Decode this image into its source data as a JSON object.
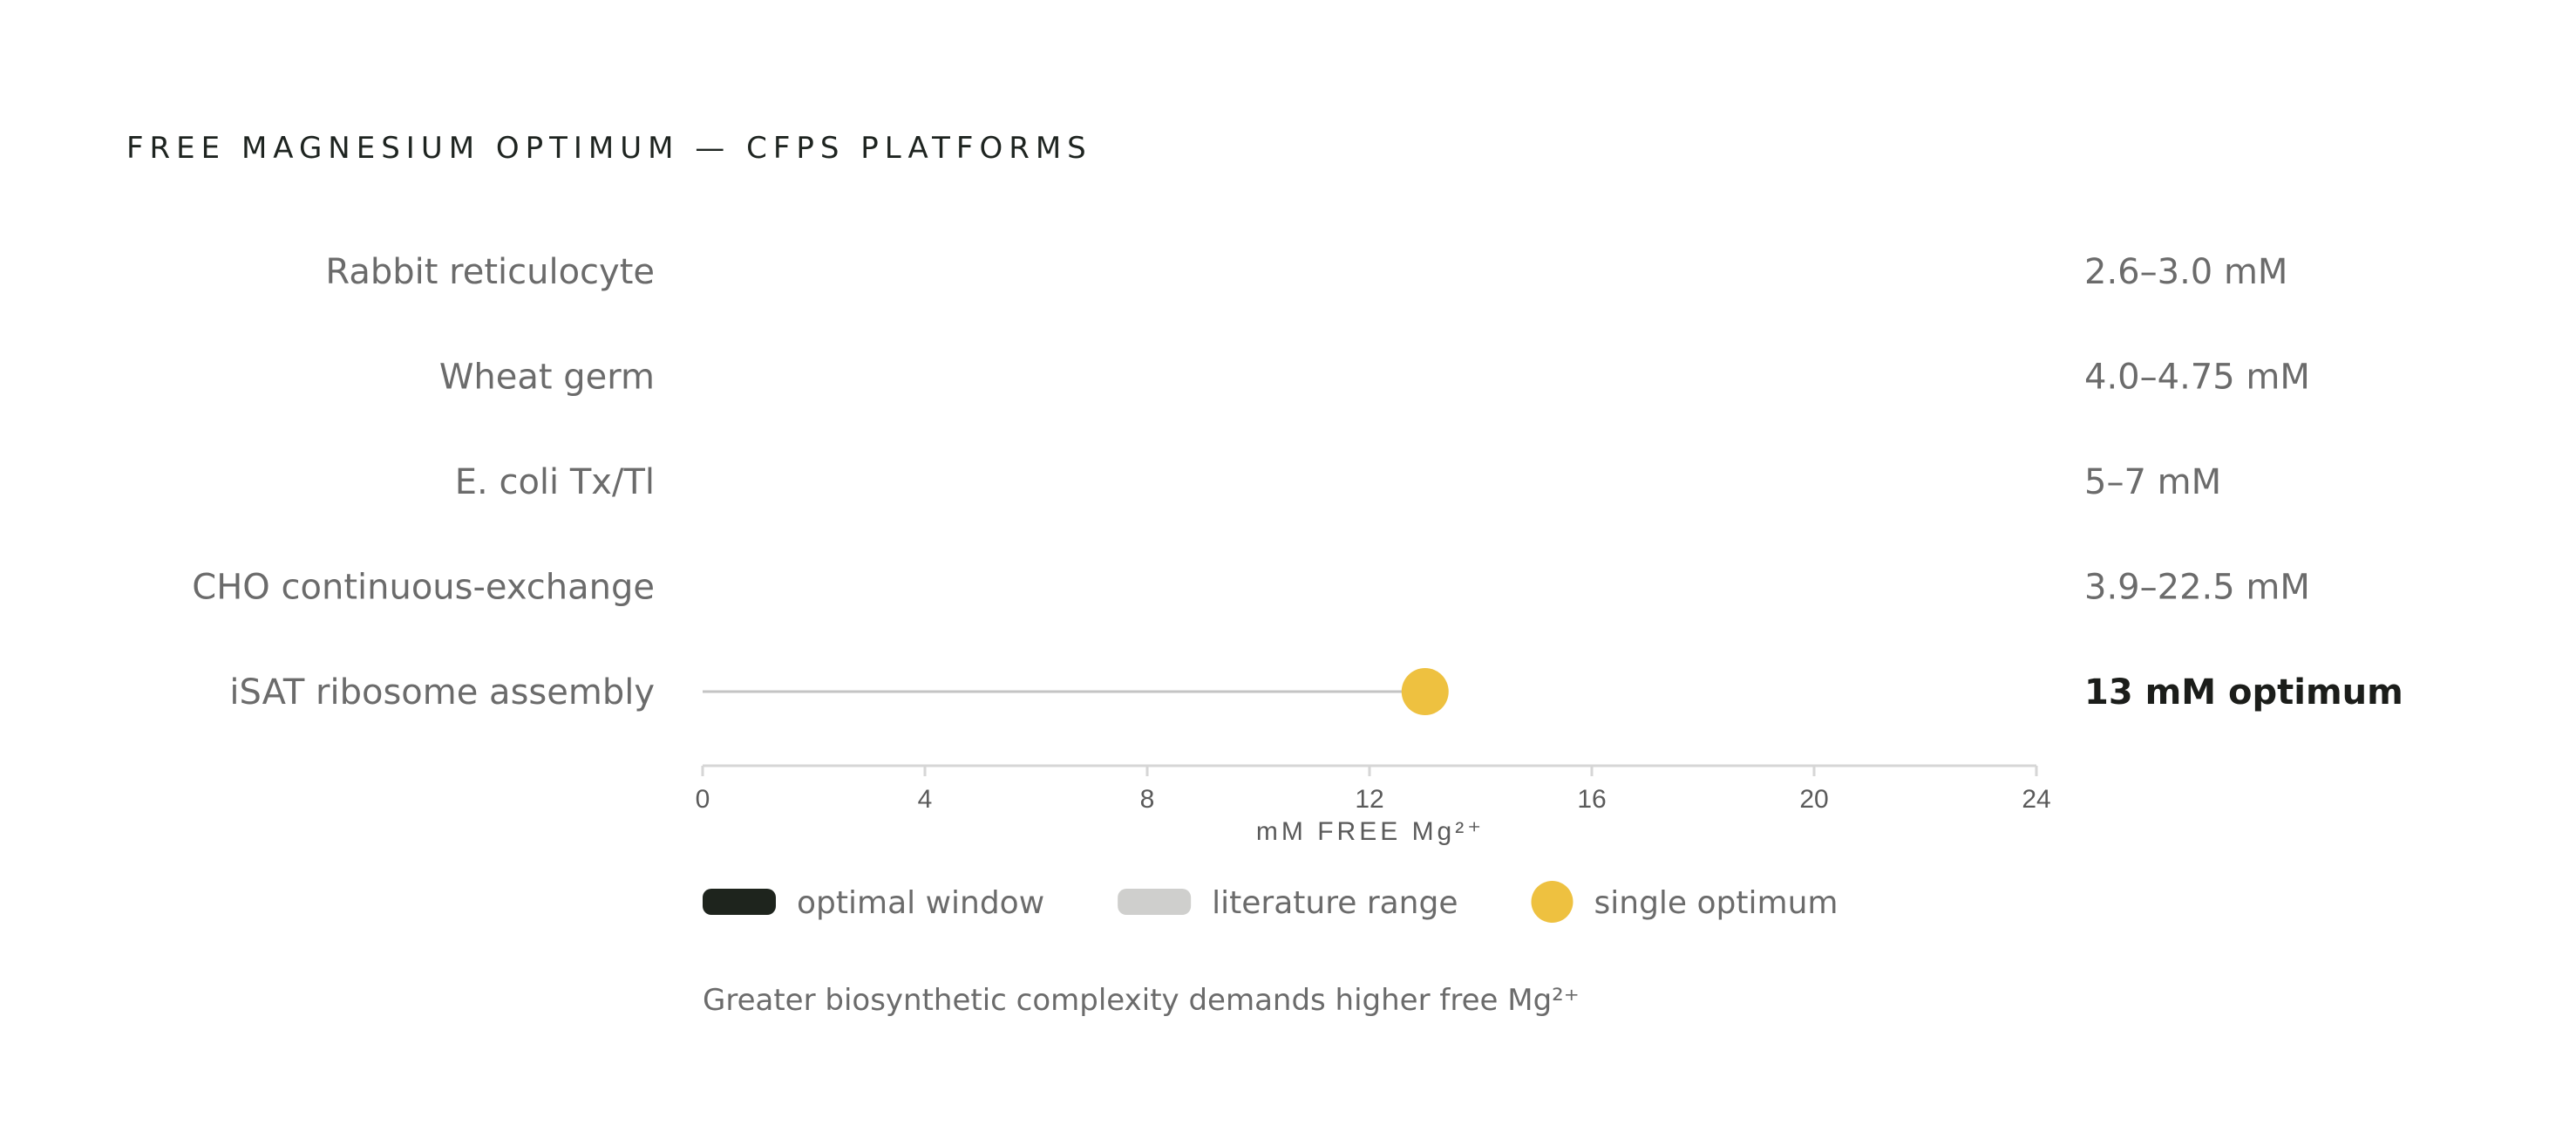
{
  "chart_data": {
    "type": "range",
    "title": "FREE MAGNESIUM OPTIMUM — CFPS PLATFORMS",
    "xlabel": "mM FREE Mg²⁺",
    "xlim": [
      0,
      24
    ],
    "xticks": [
      0,
      4,
      8,
      12,
      16,
      20,
      24
    ],
    "xtick_labels": [
      "0",
      "4",
      "8",
      "12",
      "16",
      "20",
      "24"
    ],
    "rows": [
      {
        "name": "Rabbit reticulocyte",
        "label": "2.6–3.0 mM",
        "kind": "window"
      },
      {
        "name": "Wheat germ",
        "label": "4.0–4.75 mM",
        "kind": "window"
      },
      {
        "name": "E. coli Tx/Tl",
        "label": "5–7 mM",
        "kind": "window"
      },
      {
        "name": "CHO continuous-exchange",
        "label": "3.9–22.5 mM",
        "kind": "range"
      },
      {
        "name": "iSAT ribosome assembly",
        "label": "13 mM optimum",
        "kind": "optimum",
        "value": 13,
        "emphasis": true
      }
    ],
    "legend": [
      {
        "label": "optimal window",
        "kind": "window"
      },
      {
        "label": "literature range",
        "kind": "range"
      },
      {
        "label": "single optimum",
        "kind": "optimum"
      }
    ],
    "annotation": "Greater biosynthetic complexity demands higher free Mg²⁺",
    "legend_position": "bottom",
    "grid": false
  },
  "colors": {
    "window": "#1e241d",
    "range": "#cfcfcd",
    "optimum": "#eec140",
    "leader": "#c4c4c4",
    "axis": "#d6d6d6"
  }
}
